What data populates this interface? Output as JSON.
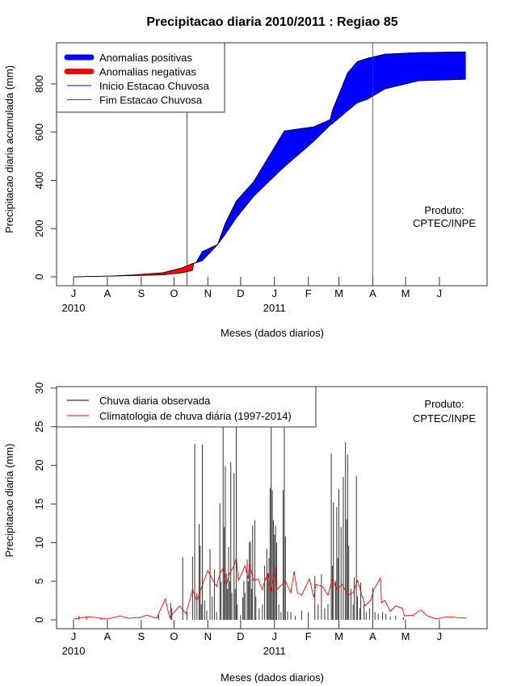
{
  "chart_data": [
    {
      "type": "area",
      "title": "Precipitacao diaria 2010/2011 : Regiao 85",
      "xlabel": "Meses (dados diarios)",
      "ylabel": "Precipitacao diaria acumulada (mm)",
      "ylim": [
        0,
        950
      ],
      "yticks": [
        0,
        200,
        400,
        600,
        800
      ],
      "month_ticks": [
        "J",
        "A",
        "S",
        "O",
        "N",
        "D",
        "J",
        "F",
        "M",
        "A",
        "M",
        "J"
      ],
      "month_tick_days": [
        0,
        31,
        62,
        92,
        123,
        153,
        184,
        215,
        243,
        274,
        304,
        335
      ],
      "year_labels": [
        {
          "label": "2010",
          "day": 0
        },
        {
          "label": "2011",
          "day": 184
        }
      ],
      "x_unit": "days since 2010-07-01",
      "legend": {
        "placement": "top-left",
        "items": [
          {
            "label": "Anomalias positivas",
            "color": "#0000ff",
            "kind": "thick"
          },
          {
            "label": "Anomalias negativas",
            "color": "#ff0000",
            "kind": "thick"
          },
          {
            "label": "Inicio Estacao Chuvosa",
            "color": "#0000ff",
            "kind": "thin"
          },
          {
            "label": "Fim Estacao Chuvosa",
            "color": "#ff0000",
            "kind": "thin"
          }
        ]
      },
      "annotation": [
        "Produto:",
        "CPTEC/INPE"
      ],
      "rainy_season_start_day": 104,
      "rainy_season_end_day": 274,
      "series": [
        {
          "name": "Observado acumulado",
          "points": [
            [
              0,
              0
            ],
            [
              32,
              3
            ],
            [
              55,
              5
            ],
            [
              82,
              8
            ],
            [
              100,
              17
            ],
            [
              109,
              27
            ],
            [
              110,
              55
            ],
            [
              112,
              58
            ],
            [
              118,
              105
            ],
            [
              132,
              134
            ],
            [
              139,
              222
            ],
            [
              149,
              314
            ],
            [
              165,
              395
            ],
            [
              185,
              545
            ],
            [
              193,
              605
            ],
            [
              220,
              622
            ],
            [
              235,
              652
            ],
            [
              237,
              690
            ],
            [
              251,
              846
            ],
            [
              260,
              893
            ],
            [
              269,
              906
            ],
            [
              285,
              923
            ],
            [
              316,
              930
            ],
            [
              359,
              933
            ]
          ]
        },
        {
          "name": "Climatologia acumulada",
          "points": [
            [
              0,
              0
            ],
            [
              32,
              3
            ],
            [
              55,
              8
            ],
            [
              82,
              17
            ],
            [
              100,
              38
            ],
            [
              109,
              55
            ],
            [
              110,
              56
            ],
            [
              112,
              58
            ],
            [
              118,
              67
            ],
            [
              132,
              134
            ],
            [
              139,
              177
            ],
            [
              149,
              244
            ],
            [
              165,
              334
            ],
            [
              185,
              422
            ],
            [
              193,
              456
            ],
            [
              220,
              562
            ],
            [
              235,
              629
            ],
            [
              237,
              635
            ],
            [
              251,
              689
            ],
            [
              260,
              722
            ],
            [
              269,
              736
            ],
            [
              285,
              779
            ],
            [
              316,
              813
            ],
            [
              359,
              819
            ]
          ]
        }
      ]
    },
    {
      "type": "bar",
      "xlabel": "Meses (dados diarios)",
      "ylabel": "Precipitacao diaria (mm)",
      "ylim": [
        0,
        30
      ],
      "yticks": [
        0,
        5,
        10,
        15,
        20,
        25,
        30
      ],
      "month_ticks": [
        "J",
        "A",
        "S",
        "O",
        "N",
        "D",
        "J",
        "F",
        "M",
        "A",
        "M",
        "J"
      ],
      "month_tick_days": [
        0,
        31,
        62,
        92,
        123,
        153,
        184,
        215,
        243,
        274,
        304,
        335
      ],
      "year_labels": [
        {
          "label": "2010",
          "day": 0
        },
        {
          "label": "2011",
          "day": 184
        }
      ],
      "legend": {
        "placement": "top-left",
        "items": [
          {
            "label": "Chuva diaria observada",
            "color": "#000000"
          },
          {
            "label": "Climatologia de chuva diária (1997-2014)",
            "color": "#ff0000"
          }
        ]
      },
      "annotation": [
        "Produto:",
        "CPTEC/INPE"
      ],
      "observed_bars": [
        [
          5,
          0.5
        ],
        [
          12,
          0.4
        ],
        [
          25,
          0.2
        ],
        [
          78,
          0.6
        ],
        [
          89,
          2.2
        ],
        [
          90,
          1.5
        ],
        [
          100,
          8.1
        ],
        [
          104,
          1.0
        ],
        [
          109,
          8.2
        ],
        [
          111,
          22.8
        ],
        [
          113,
          3.5
        ],
        [
          115,
          12.4
        ],
        [
          116,
          9.6
        ],
        [
          117,
          2.0
        ],
        [
          118,
          22.7
        ],
        [
          120,
          2.5
        ],
        [
          122,
          1.2
        ],
        [
          125,
          9.2
        ],
        [
          127,
          3.0
        ],
        [
          129,
          6.5
        ],
        [
          131,
          1.0
        ],
        [
          134,
          15.1
        ],
        [
          135,
          5.0
        ],
        [
          137,
          35
        ],
        [
          138,
          12.0
        ],
        [
          139,
          19.9
        ],
        [
          140,
          6.0
        ],
        [
          141,
          4.0
        ],
        [
          142,
          9.4
        ],
        [
          143,
          5.0
        ],
        [
          144,
          20.4
        ],
        [
          145,
          3.5
        ],
        [
          147,
          19.0
        ],
        [
          148,
          4.0
        ],
        [
          149,
          35
        ],
        [
          150,
          2.0
        ],
        [
          153,
          0.6
        ],
        [
          155,
          2.9
        ],
        [
          156,
          5.0
        ],
        [
          157,
          3.5
        ],
        [
          159,
          7.8
        ],
        [
          160,
          5.0
        ],
        [
          161,
          10.0
        ],
        [
          162,
          10.2
        ],
        [
          163,
          4.0
        ],
        [
          164,
          12.2
        ],
        [
          166,
          12.9
        ],
        [
          167,
          3.0
        ],
        [
          170,
          1.5
        ],
        [
          173,
          2.0
        ],
        [
          175,
          7.0
        ],
        [
          177,
          9.2
        ],
        [
          178,
          6.0
        ],
        [
          179,
          8.0
        ],
        [
          180,
          17.1
        ],
        [
          181,
          35
        ],
        [
          182,
          16.8
        ],
        [
          183,
          12.9
        ],
        [
          184,
          11.0
        ],
        [
          185,
          12.2
        ],
        [
          186,
          10.0
        ],
        [
          188,
          2.0
        ],
        [
          190,
          1.0
        ],
        [
          192,
          16.8
        ],
        [
          193,
          35
        ],
        [
          194,
          10.8
        ],
        [
          196,
          1.1
        ],
        [
          199,
          1.0
        ],
        [
          203,
          0.5
        ],
        [
          209,
          1.2
        ],
        [
          215,
          1.0
        ],
        [
          221,
          5.7
        ],
        [
          224,
          2.0
        ],
        [
          227,
          5.9
        ],
        [
          230,
          1.5
        ],
        [
          233,
          2.0
        ],
        [
          236,
          21.6
        ],
        [
          237,
          7.0
        ],
        [
          238,
          15.2
        ],
        [
          240,
          5.0
        ],
        [
          241,
          14.6
        ],
        [
          242,
          8.0
        ],
        [
          243,
          16.9
        ],
        [
          245,
          12.0
        ],
        [
          247,
          18.5
        ],
        [
          249,
          23.0
        ],
        [
          250,
          13.0
        ],
        [
          251,
          21.4
        ],
        [
          252,
          9.6
        ],
        [
          254,
          4.0
        ],
        [
          256,
          2.0
        ],
        [
          257,
          5.5
        ],
        [
          259,
          18.6
        ],
        [
          260,
          3.0
        ],
        [
          262,
          1.5
        ],
        [
          263,
          4.8
        ],
        [
          266,
          2.0
        ],
        [
          268,
          1.0
        ],
        [
          271,
          1.5
        ],
        [
          274,
          4.1
        ],
        [
          276,
          1.0
        ],
        [
          279,
          0.8
        ],
        [
          283,
          1.0
        ],
        [
          286,
          0.8
        ],
        [
          290,
          0.4
        ],
        [
          295,
          0.5
        ],
        [
          302,
          0.3
        ]
      ],
      "climatology": [
        [
          0,
          0.1
        ],
        [
          9,
          0.3
        ],
        [
          15,
          0.4
        ],
        [
          30,
          0.1
        ],
        [
          43,
          0.5
        ],
        [
          50,
          0.2
        ],
        [
          61,
          0.3
        ],
        [
          67,
          0.6
        ],
        [
          76,
          0.2
        ],
        [
          84,
          2.7
        ],
        [
          88,
          0.3
        ],
        [
          97,
          1.8
        ],
        [
          103,
          0.8
        ],
        [
          109,
          3.9
        ],
        [
          113,
          2.5
        ],
        [
          120,
          5.3
        ],
        [
          123,
          6.4
        ],
        [
          127,
          5.3
        ],
        [
          131,
          4.3
        ],
        [
          134,
          6.0
        ],
        [
          137,
          6.7
        ],
        [
          140,
          4.6
        ],
        [
          143,
          6.0
        ],
        [
          147,
          7.0
        ],
        [
          149,
          8.0
        ],
        [
          151,
          5.1
        ],
        [
          155,
          6.3
        ],
        [
          157,
          7.0
        ],
        [
          160,
          5.3
        ],
        [
          161,
          7.2
        ],
        [
          165,
          5.1
        ],
        [
          169,
          5.3
        ],
        [
          173,
          3.9
        ],
        [
          175,
          5.0
        ],
        [
          178,
          6.0
        ],
        [
          181,
          3.6
        ],
        [
          185,
          7.0
        ],
        [
          186,
          3.9
        ],
        [
          194,
          5.0
        ],
        [
          199,
          3.5
        ],
        [
          202,
          6.3
        ],
        [
          205,
          3.5
        ],
        [
          209,
          3.2
        ],
        [
          216,
          5.3
        ],
        [
          220,
          2.9
        ],
        [
          222,
          4.6
        ],
        [
          228,
          4.3
        ],
        [
          233,
          3.2
        ],
        [
          237,
          5.3
        ],
        [
          241,
          3.9
        ],
        [
          246,
          4.6
        ],
        [
          251,
          3.2
        ],
        [
          256,
          3.5
        ],
        [
          260,
          5.1
        ],
        [
          264,
          3.2
        ],
        [
          267,
          1.8
        ],
        [
          272,
          2.5
        ],
        [
          275,
          3.9
        ],
        [
          281,
          5.4
        ],
        [
          282,
          2.2
        ],
        [
          285,
          2.5
        ],
        [
          290,
          1.1
        ],
        [
          295,
          1.8
        ],
        [
          301,
          1.5
        ],
        [
          303,
          0.5
        ],
        [
          311,
          0.6
        ],
        [
          318,
          1.3
        ],
        [
          324,
          0.5
        ],
        [
          332,
          0.1
        ],
        [
          342,
          0.4
        ],
        [
          360,
          0.2
        ]
      ]
    }
  ]
}
